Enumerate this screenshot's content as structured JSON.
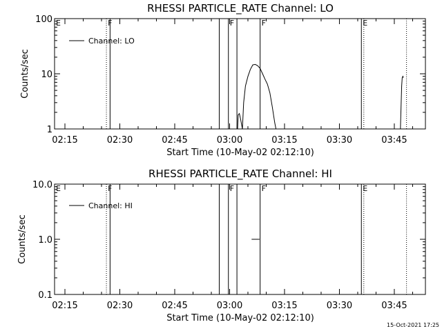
{
  "chart_data": [
    {
      "type": "line",
      "title": "RHESSI PARTICLE_RATE Channel: LO",
      "xlabel": "Start Time (10-May-02 02:12:10)",
      "ylabel": "Counts/sec",
      "y_scale": "log",
      "ylim": [
        1,
        100
      ],
      "xlim": [
        "02:12:10",
        "03:53:30"
      ],
      "y_ticks": [
        "1",
        "10",
        "100"
      ],
      "x_ticks": [
        "02:15",
        "02:30",
        "02:45",
        "03:00",
        "03:15",
        "03:30",
        "03:45"
      ],
      "legend": {
        "position": "top-left",
        "entry": "Channel: LO"
      },
      "grid": false,
      "markers": [
        {
          "label": "E",
          "time": "02:12:10",
          "style": "dotted"
        },
        {
          "label": "F",
          "time": "02:26:20",
          "style": "dotted"
        },
        {
          "label": "",
          "time": "02:27:20",
          "style": "solid"
        },
        {
          "label": "",
          "time": "02:57:10",
          "style": "solid"
        },
        {
          "label": "F",
          "time": "02:59:40",
          "style": "solid"
        },
        {
          "label": "",
          "time": "03:02:00",
          "style": "solid"
        },
        {
          "label": "F",
          "time": "03:08:20",
          "style": "solid"
        },
        {
          "label": "E",
          "time": "03:36:00",
          "style": "solid"
        },
        {
          "label": "",
          "time": "03:36:40",
          "style": "dotted"
        },
        {
          "label": "",
          "time": "03:48:20",
          "style": "dotted"
        }
      ],
      "series": [
        {
          "name": "Channel: LO",
          "segments": [
            [
              [
                "03:02:10",
                1.0
              ],
              [
                "03:02:20",
                1.8
              ],
              [
                "03:02:40",
                1.9
              ],
              [
                "03:03:00",
                1.5
              ],
              [
                "03:03:30",
                1.0
              ],
              [
                "03:03:50",
                3.0
              ],
              [
                "03:04:20",
                6.0
              ],
              [
                "03:05:00",
                9.0
              ],
              [
                "03:05:40",
                12.0
              ],
              [
                "03:06:20",
                14.5
              ],
              [
                "03:07:00",
                14.8
              ],
              [
                "03:07:40",
                14.0
              ],
              [
                "03:08:20",
                12.5
              ],
              [
                "03:09:00",
                10.0
              ],
              [
                "03:09:40",
                8.0
              ],
              [
                "03:10:20",
                6.5
              ],
              [
                "03:11:00",
                4.5
              ],
              [
                "03:11:40",
                2.5
              ],
              [
                "03:12:20",
                1.3
              ],
              [
                "03:12:40",
                1.0
              ]
            ],
            [
              [
                "03:46:40",
                1.0
              ],
              [
                "03:46:50",
                2.5
              ],
              [
                "03:47:00",
                6.0
              ],
              [
                "03:47:10",
                8.5
              ],
              [
                "03:47:20",
                9.0
              ],
              [
                "03:47:30",
                8.5
              ]
            ]
          ]
        }
      ]
    },
    {
      "type": "line",
      "title": "RHESSI PARTICLE_RATE Channel: HI",
      "xlabel": "Start Time (10-May-02 02:12:10)",
      "ylabel": "Counts/sec",
      "y_scale": "log",
      "ylim": [
        0.1,
        10.0
      ],
      "xlim": [
        "02:12:10",
        "03:53:30"
      ],
      "y_ticks": [
        "0.1",
        "1.0",
        "10.0"
      ],
      "x_ticks": [
        "02:15",
        "02:30",
        "02:45",
        "03:00",
        "03:15",
        "03:30",
        "03:45"
      ],
      "legend": {
        "position": "top-left",
        "entry": "Channel: HI"
      },
      "grid": false,
      "markers": [
        {
          "label": "E",
          "time": "02:12:10",
          "style": "dotted"
        },
        {
          "label": "F",
          "time": "02:26:20",
          "style": "dotted"
        },
        {
          "label": "",
          "time": "02:27:20",
          "style": "solid"
        },
        {
          "label": "",
          "time": "02:57:10",
          "style": "solid"
        },
        {
          "label": "F",
          "time": "02:59:40",
          "style": "solid"
        },
        {
          "label": "",
          "time": "03:02:00",
          "style": "solid"
        },
        {
          "label": "F",
          "time": "03:08:20",
          "style": "solid"
        },
        {
          "label": "E",
          "time": "03:36:00",
          "style": "solid"
        },
        {
          "label": "",
          "time": "03:36:40",
          "style": "dotted"
        },
        {
          "label": "",
          "time": "03:48:20",
          "style": "dotted"
        }
      ],
      "series": [
        {
          "name": "Channel: HI",
          "segments": [
            [
              [
                "03:06:00",
                1.0
              ],
              [
                "03:08:10",
                1.0
              ]
            ]
          ]
        }
      ]
    }
  ],
  "footer": {
    "timestamp": "15-Oct-2021 17:25"
  }
}
